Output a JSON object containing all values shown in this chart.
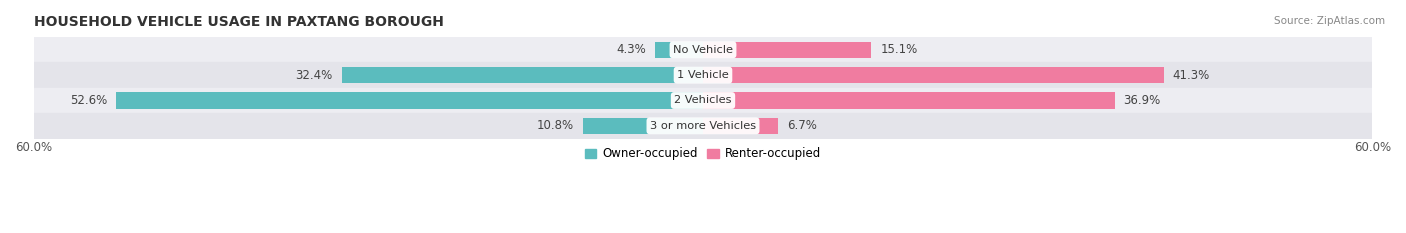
{
  "title": "HOUSEHOLD VEHICLE USAGE IN PAXTANG BOROUGH",
  "source": "Source: ZipAtlas.com",
  "categories": [
    "No Vehicle",
    "1 Vehicle",
    "2 Vehicles",
    "3 or more Vehicles"
  ],
  "owner_values": [
    4.3,
    32.4,
    52.6,
    10.8
  ],
  "renter_values": [
    15.1,
    41.3,
    36.9,
    6.7
  ],
  "owner_color": "#5bbcbe",
  "renter_color": "#f07ca0",
  "background_row_colors": [
    "#ededf2",
    "#e4e4ea"
  ],
  "xlim": [
    -60,
    60
  ],
  "legend_owner": "Owner-occupied",
  "legend_renter": "Renter-occupied",
  "bar_height": 0.65,
  "title_fontsize": 10,
  "label_fontsize": 8.5,
  "category_fontsize": 8.2,
  "axis_fontsize": 8.5
}
